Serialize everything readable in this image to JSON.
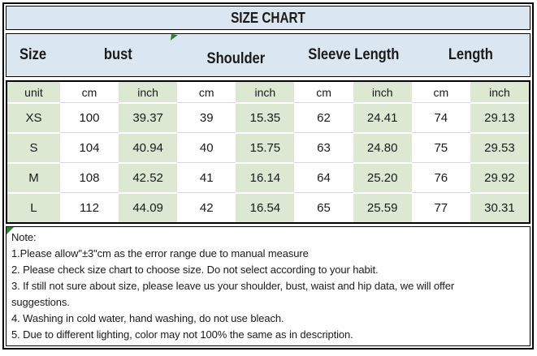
{
  "title": "SIZE CHART",
  "table": {
    "header_groups": [
      {
        "label": "Size"
      },
      {
        "label": "bust"
      },
      {
        "label": "Shoulder"
      },
      {
        "label": "Sleeve Length"
      },
      {
        "label": "Length"
      }
    ],
    "unit_row": [
      "unit",
      "cm",
      "inch",
      "cm",
      "inch",
      "cm",
      "inch",
      "cm",
      "inch"
    ],
    "rows": [
      {
        "label": "XS",
        "values": [
          "100",
          "39.37",
          "39",
          "15.35",
          "62",
          "24.41",
          "74",
          "29.13"
        ]
      },
      {
        "label": "S",
        "values": [
          "104",
          "40.94",
          "40",
          "15.75",
          "63",
          "24.80",
          "75",
          "29.53"
        ]
      },
      {
        "label": "M",
        "values": [
          "108",
          "42.52",
          "41",
          "16.14",
          "64",
          "25.20",
          "76",
          "29.92"
        ]
      },
      {
        "label": "L",
        "values": [
          "112",
          "44.09",
          "42",
          "16.54",
          "65",
          "25.59",
          "77",
          "30.31"
        ]
      }
    ]
  },
  "notes": {
    "heading": "Note:",
    "lines": [
      "1.Please allow\"±3\"cm as the error range due to manual measure",
      "2. Please check size chart to choose size. Do not select according to your habit.",
      "3. If still not sure about size, please leave us your shoulder, bust, waist and hip data, we will offer",
      "suggestions.",
      "4. Washing in cold water, hand washing, do not use bleach.",
      "5. Due to different lighting, color may not 100% the same as in description."
    ]
  },
  "colors": {
    "header_bg": "#dbe7f0",
    "cell_green": "#dce8d2",
    "cell_white": "#ffffff",
    "marker_green": "#2e7d32",
    "border": "#000000"
  }
}
